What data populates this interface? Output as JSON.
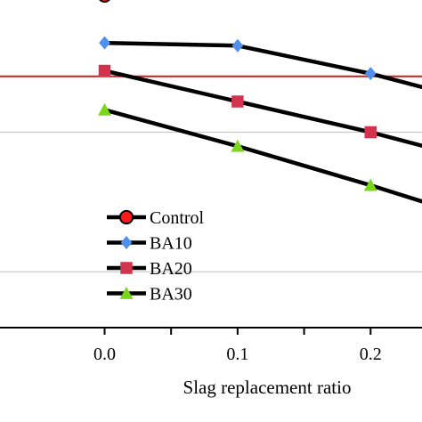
{
  "chart_data": {
    "type": "line",
    "title": "",
    "xlabel": "Slag replacement ratio",
    "ylabel": "",
    "xlim": [
      -0.08,
      0.24
    ],
    "ylim": [
      0.3,
      1.48
    ],
    "x_ticks": [
      {
        "value": 0.0,
        "label": "0.0"
      },
      {
        "value": 0.1,
        "label": "0.1"
      },
      {
        "value": 0.2,
        "label": "0.2"
      }
    ],
    "x_minor_ticks": [
      0.05,
      0.15
    ],
    "y_gridlines": [
      0.5,
      1.0
    ],
    "reference_line": {
      "y": 1.2,
      "color": "#cc1f1f"
    },
    "grid": "horizontal",
    "legend_position": "lower-left",
    "series": [
      {
        "name": "Control",
        "marker": "circle",
        "color": "#ff1a1a",
        "x": [
          0.0
        ],
        "y": [
          1.49
        ]
      },
      {
        "name": "BA10",
        "marker": "diamond",
        "color": "#4f8fef",
        "x": [
          0.0,
          0.1,
          0.2,
          0.24
        ],
        "y": [
          1.32,
          1.31,
          1.21,
          1.16
        ]
      },
      {
        "name": "BA20",
        "marker": "square",
        "color": "#d2344f",
        "x": [
          0.0,
          0.1,
          0.2,
          0.24
        ],
        "y": [
          1.22,
          1.11,
          1.0,
          0.95
        ]
      },
      {
        "name": "BA30",
        "marker": "triangle",
        "color": "#7ad61a",
        "x": [
          0.0,
          0.1,
          0.2,
          0.24
        ],
        "y": [
          1.08,
          0.95,
          0.81,
          0.75
        ]
      }
    ]
  }
}
